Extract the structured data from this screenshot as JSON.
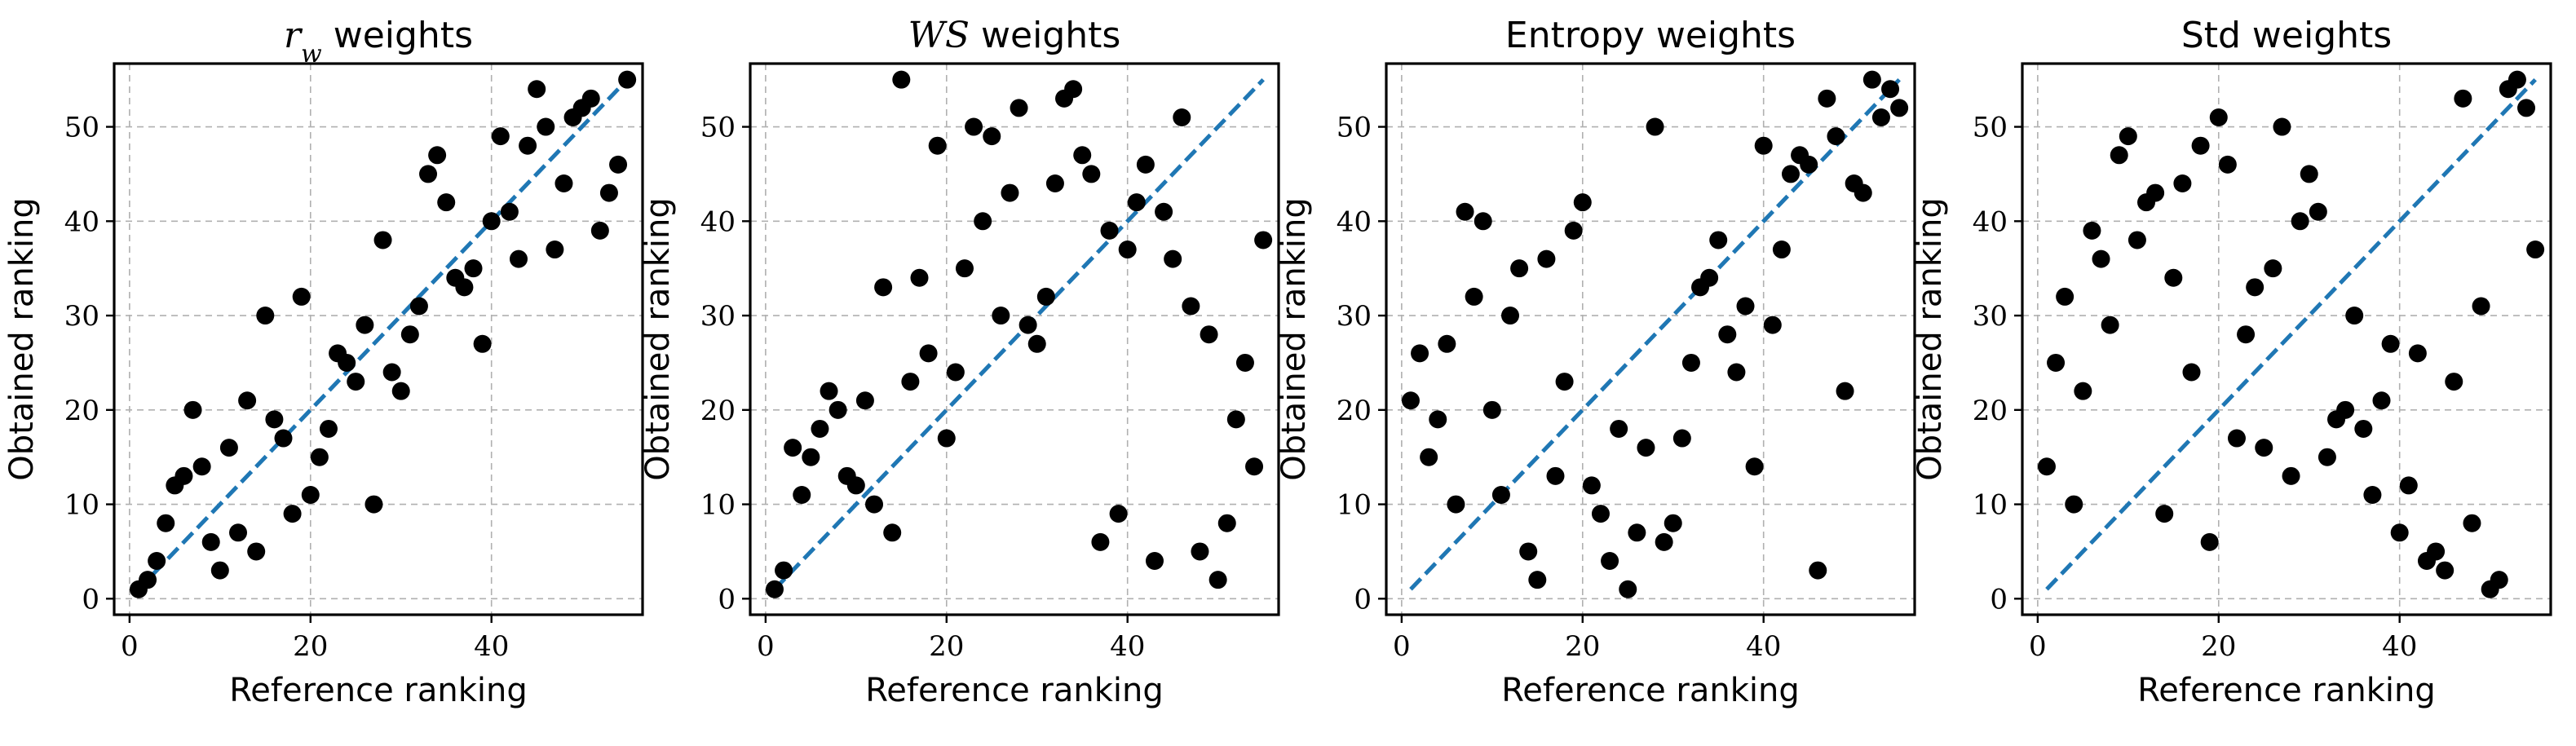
{
  "chart_data": [
    {
      "type": "scatter",
      "title": "r_w weights",
      "title_parts": [
        {
          "text": "r",
          "italic": true
        },
        {
          "text": "w",
          "italic": true,
          "sub": true
        },
        {
          "text": " weights",
          "italic": false
        }
      ],
      "xlabel": "Reference ranking",
      "ylabel": "Obtained ranking",
      "xlim": [
        -1.7,
        56.7
      ],
      "ylim": [
        -1.7,
        56.7
      ],
      "xticks": [
        0,
        20,
        40
      ],
      "yticks": [
        0,
        10,
        20,
        30,
        40,
        50
      ],
      "grid": true,
      "reference_line": {
        "x": [
          1,
          55
        ],
        "y": [
          1,
          55
        ],
        "color": "#1f77b4",
        "style": "dashed"
      },
      "points": [
        [
          1,
          1
        ],
        [
          2,
          2
        ],
        [
          3,
          4
        ],
        [
          4,
          8
        ],
        [
          5,
          12
        ],
        [
          6,
          13
        ],
        [
          7,
          20
        ],
        [
          8,
          14
        ],
        [
          9,
          6
        ],
        [
          10,
          3
        ],
        [
          11,
          16
        ],
        [
          12,
          7
        ],
        [
          13,
          21
        ],
        [
          14,
          5
        ],
        [
          15,
          30
        ],
        [
          16,
          19
        ],
        [
          17,
          17
        ],
        [
          18,
          9
        ],
        [
          19,
          32
        ],
        [
          20,
          11
        ],
        [
          21,
          15
        ],
        [
          22,
          18
        ],
        [
          23,
          26
        ],
        [
          24,
          25
        ],
        [
          25,
          23
        ],
        [
          26,
          29
        ],
        [
          27,
          10
        ],
        [
          28,
          38
        ],
        [
          29,
          24
        ],
        [
          30,
          22
        ],
        [
          31,
          28
        ],
        [
          32,
          31
        ],
        [
          33,
          45
        ],
        [
          34,
          47
        ],
        [
          35,
          42
        ],
        [
          36,
          34
        ],
        [
          37,
          33
        ],
        [
          38,
          35
        ],
        [
          39,
          27
        ],
        [
          40,
          40
        ],
        [
          41,
          49
        ],
        [
          42,
          41
        ],
        [
          43,
          36
        ],
        [
          44,
          48
        ],
        [
          45,
          54
        ],
        [
          46,
          50
        ],
        [
          47,
          37
        ],
        [
          48,
          44
        ],
        [
          49,
          51
        ],
        [
          50,
          52
        ],
        [
          51,
          53
        ],
        [
          52,
          39
        ],
        [
          53,
          43
        ],
        [
          54,
          46
        ],
        [
          55,
          55
        ]
      ]
    },
    {
      "type": "scatter",
      "title": "WS weights",
      "title_parts": [
        {
          "text": "WS",
          "italic": true
        },
        {
          "text": " weights",
          "italic": false
        }
      ],
      "xlabel": "Reference ranking",
      "ylabel": "Obtained ranking",
      "xlim": [
        -1.7,
        56.7
      ],
      "ylim": [
        -1.7,
        56.7
      ],
      "xticks": [
        0,
        20,
        40
      ],
      "yticks": [
        0,
        10,
        20,
        30,
        40,
        50
      ],
      "grid": true,
      "reference_line": {
        "x": [
          1,
          55
        ],
        "y": [
          1,
          55
        ],
        "color": "#1f77b4",
        "style": "dashed"
      },
      "points": [
        [
          1,
          1
        ],
        [
          2,
          3
        ],
        [
          3,
          16
        ],
        [
          4,
          11
        ],
        [
          5,
          15
        ],
        [
          6,
          18
        ],
        [
          7,
          22
        ],
        [
          8,
          20
        ],
        [
          9,
          13
        ],
        [
          10,
          12
        ],
        [
          11,
          21
        ],
        [
          12,
          10
        ],
        [
          13,
          33
        ],
        [
          14,
          7
        ],
        [
          15,
          55
        ],
        [
          16,
          23
        ],
        [
          17,
          34
        ],
        [
          18,
          26
        ],
        [
          19,
          48
        ],
        [
          20,
          17
        ],
        [
          21,
          24
        ],
        [
          22,
          35
        ],
        [
          23,
          50
        ],
        [
          24,
          40
        ],
        [
          25,
          49
        ],
        [
          26,
          30
        ],
        [
          27,
          43
        ],
        [
          28,
          52
        ],
        [
          29,
          29
        ],
        [
          30,
          27
        ],
        [
          31,
          32
        ],
        [
          32,
          44
        ],
        [
          33,
          53
        ],
        [
          34,
          54
        ],
        [
          35,
          47
        ],
        [
          36,
          45
        ],
        [
          37,
          6
        ],
        [
          38,
          39
        ],
        [
          39,
          9
        ],
        [
          40,
          37
        ],
        [
          41,
          42
        ],
        [
          42,
          46
        ],
        [
          43,
          4
        ],
        [
          44,
          41
        ],
        [
          45,
          36
        ],
        [
          46,
          51
        ],
        [
          47,
          31
        ],
        [
          48,
          5
        ],
        [
          49,
          28
        ],
        [
          50,
          2
        ],
        [
          51,
          8
        ],
        [
          52,
          19
        ],
        [
          53,
          25
        ],
        [
          54,
          14
        ],
        [
          55,
          38
        ]
      ]
    },
    {
      "type": "scatter",
      "title": "Entropy weights",
      "title_parts": [
        {
          "text": "Entropy weights",
          "italic": false
        }
      ],
      "xlabel": "Reference ranking",
      "ylabel": "Obtained ranking",
      "xlim": [
        -1.7,
        56.7
      ],
      "ylim": [
        -1.7,
        56.7
      ],
      "xticks": [
        0,
        20,
        40
      ],
      "yticks": [
        0,
        10,
        20,
        30,
        40,
        50
      ],
      "grid": true,
      "reference_line": {
        "x": [
          1,
          55
        ],
        "y": [
          1,
          55
        ],
        "color": "#1f77b4",
        "style": "dashed"
      },
      "points": [
        [
          1,
          21
        ],
        [
          2,
          26
        ],
        [
          3,
          15
        ],
        [
          4,
          19
        ],
        [
          5,
          27
        ],
        [
          6,
          10
        ],
        [
          7,
          41
        ],
        [
          8,
          32
        ],
        [
          9,
          40
        ],
        [
          10,
          20
        ],
        [
          11,
          11
        ],
        [
          12,
          30
        ],
        [
          13,
          35
        ],
        [
          14,
          5
        ],
        [
          15,
          2
        ],
        [
          16,
          36
        ],
        [
          17,
          13
        ],
        [
          18,
          23
        ],
        [
          19,
          39
        ],
        [
          20,
          42
        ],
        [
          21,
          12
        ],
        [
          22,
          9
        ],
        [
          23,
          4
        ],
        [
          24,
          18
        ],
        [
          25,
          1
        ],
        [
          26,
          7
        ],
        [
          27,
          16
        ],
        [
          28,
          50
        ],
        [
          29,
          6
        ],
        [
          30,
          8
        ],
        [
          31,
          17
        ],
        [
          32,
          25
        ],
        [
          33,
          33
        ],
        [
          34,
          34
        ],
        [
          35,
          38
        ],
        [
          36,
          28
        ],
        [
          37,
          24
        ],
        [
          38,
          31
        ],
        [
          39,
          14
        ],
        [
          40,
          48
        ],
        [
          41,
          29
        ],
        [
          42,
          37
        ],
        [
          43,
          45
        ],
        [
          44,
          47
        ],
        [
          45,
          46
        ],
        [
          46,
          3
        ],
        [
          47,
          53
        ],
        [
          48,
          49
        ],
        [
          49,
          22
        ],
        [
          50,
          44
        ],
        [
          51,
          43
        ],
        [
          52,
          55
        ],
        [
          53,
          51
        ],
        [
          54,
          54
        ],
        [
          55,
          52
        ]
      ]
    },
    {
      "type": "scatter",
      "title": "Std weights",
      "title_parts": [
        {
          "text": "Std weights",
          "italic": false
        }
      ],
      "xlabel": "Reference ranking",
      "ylabel": "Obtained ranking",
      "xlim": [
        -1.7,
        56.7
      ],
      "ylim": [
        -1.7,
        56.7
      ],
      "xticks": [
        0,
        20,
        40
      ],
      "yticks": [
        0,
        10,
        20,
        30,
        40,
        50
      ],
      "grid": true,
      "reference_line": {
        "x": [
          1,
          55
        ],
        "y": [
          1,
          55
        ],
        "color": "#1f77b4",
        "style": "dashed"
      },
      "points": [
        [
          1,
          14
        ],
        [
          2,
          25
        ],
        [
          3,
          32
        ],
        [
          4,
          10
        ],
        [
          5,
          22
        ],
        [
          6,
          39
        ],
        [
          7,
          36
        ],
        [
          8,
          29
        ],
        [
          9,
          47
        ],
        [
          10,
          49
        ],
        [
          11,
          38
        ],
        [
          12,
          42
        ],
        [
          13,
          43
        ],
        [
          14,
          9
        ],
        [
          15,
          34
        ],
        [
          16,
          44
        ],
        [
          17,
          24
        ],
        [
          18,
          48
        ],
        [
          19,
          6
        ],
        [
          20,
          51
        ],
        [
          21,
          46
        ],
        [
          22,
          17
        ],
        [
          23,
          28
        ],
        [
          24,
          33
        ],
        [
          25,
          16
        ],
        [
          26,
          35
        ],
        [
          27,
          50
        ],
        [
          28,
          13
        ],
        [
          29,
          40
        ],
        [
          30,
          45
        ],
        [
          31,
          41
        ],
        [
          32,
          15
        ],
        [
          33,
          19
        ],
        [
          34,
          20
        ],
        [
          35,
          30
        ],
        [
          36,
          18
        ],
        [
          37,
          11
        ],
        [
          38,
          21
        ],
        [
          39,
          27
        ],
        [
          40,
          7
        ],
        [
          41,
          12
        ],
        [
          42,
          26
        ],
        [
          43,
          4
        ],
        [
          44,
          5
        ],
        [
          45,
          3
        ],
        [
          46,
          23
        ],
        [
          47,
          53
        ],
        [
          48,
          8
        ],
        [
          49,
          31
        ],
        [
          50,
          1
        ],
        [
          51,
          2
        ],
        [
          52,
          54
        ],
        [
          53,
          55
        ],
        [
          54,
          52
        ],
        [
          55,
          37
        ]
      ]
    }
  ]
}
